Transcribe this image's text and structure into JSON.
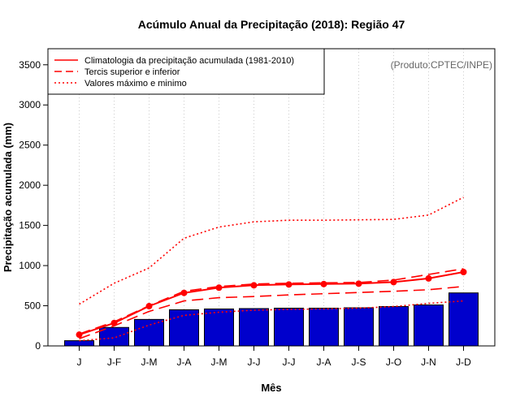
{
  "chart_data": {
    "type": "bar",
    "title": "Acúmulo Anual da Precipitação (2018): Região 47",
    "xlabel": "Mês",
    "ylabel": "Precipitação acumulada (mm)",
    "credit": "(Produto:CPTEC/INPE)",
    "ylim": [
      0,
      3700
    ],
    "yticks": [
      0,
      500,
      1000,
      1500,
      2000,
      2500,
      3000,
      3500
    ],
    "categories": [
      "J",
      "J-F",
      "J-M",
      "J-A",
      "J-M",
      "J-J",
      "J-J",
      "J-A",
      "J-S",
      "J-O",
      "J-N",
      "J-D"
    ],
    "grid": "vertical dotted",
    "bars": {
      "name": "Precipitação acumulada 2018",
      "color": "#0000cc",
      "values": [
        65,
        230,
        330,
        450,
        460,
        465,
        470,
        470,
        475,
        490,
        510,
        660
      ]
    },
    "lines": [
      {
        "name": "Climatologia da precipitação acumulada (1981-2010)",
        "style": "solid",
        "color": "#ff0000",
        "markers": true,
        "values": [
          140,
          285,
          495,
          660,
          725,
          755,
          765,
          770,
          775,
          795,
          840,
          920
        ]
      },
      {
        "name": "Tercis superior",
        "style": "dashed",
        "color": "#ff0000",
        "values": [
          150,
          300,
          500,
          680,
          740,
          770,
          780,
          785,
          790,
          820,
          890,
          960
        ]
      },
      {
        "name": "Tercis inferior",
        "style": "dashed",
        "color": "#ff0000",
        "values": [
          90,
          250,
          430,
          560,
          600,
          615,
          635,
          650,
          665,
          680,
          700,
          740
        ]
      },
      {
        "name": "Valores máximo",
        "style": "dotted",
        "color": "#ff0000",
        "values": [
          520,
          780,
          970,
          1340,
          1480,
          1545,
          1565,
          1565,
          1570,
          1575,
          1630,
          1850
        ]
      },
      {
        "name": "Valores mínimo",
        "style": "dotted",
        "color": "#ff0000",
        "values": [
          65,
          100,
          260,
          380,
          420,
          445,
          455,
          460,
          470,
          490,
          530,
          560
        ]
      }
    ],
    "legend": {
      "position": "top-left",
      "items": [
        {
          "label": "Climatologia da precipitação acumulada (1981-2010)",
          "style": "solid"
        },
        {
          "label": "Tercis superior e inferior",
          "style": "dashed"
        },
        {
          "label": "Valores máximo e minimo",
          "style": "dotted"
        }
      ]
    }
  }
}
